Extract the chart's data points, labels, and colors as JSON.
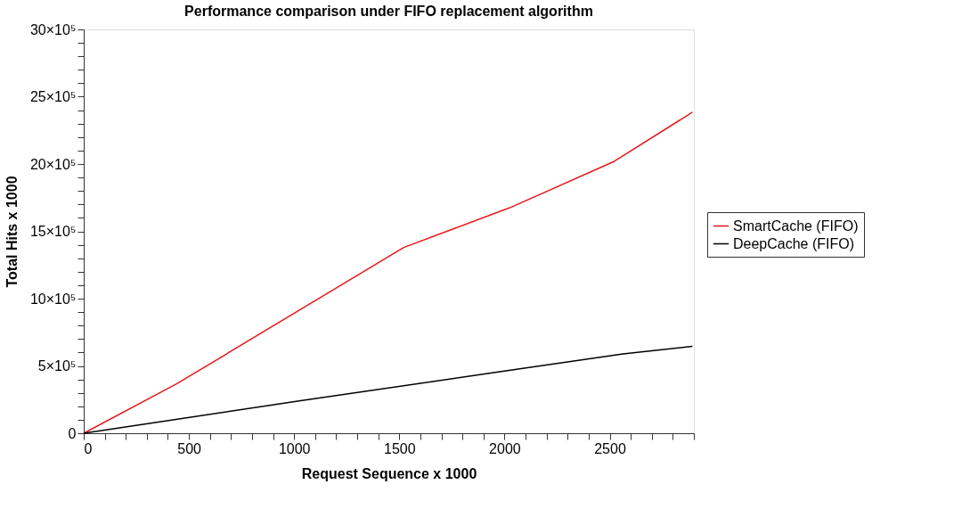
{
  "chart_data": {
    "type": "line",
    "title": "Performance comparison under FIFO replacement algorithm",
    "xlabel": "Request Sequence x 1000",
    "ylabel": "Total Hits x 1000",
    "xlim": [
      0,
      2900
    ],
    "ylim": [
      0,
      3000000
    ],
    "xticks": [
      0,
      {
        "value": 100,
        "label": null
      },
      {
        "value": 200,
        "label": null
      },
      {
        "value": 300,
        "label": null
      },
      {
        "value": 400,
        "label": null
      },
      500,
      {
        "value": 600,
        "label": null
      },
      {
        "value": 700,
        "label": null
      },
      {
        "value": 800,
        "label": null
      },
      {
        "value": 900,
        "label": null
      },
      1000,
      {
        "value": 1100,
        "label": null
      },
      {
        "value": 1200,
        "label": null
      },
      {
        "value": 1300,
        "label": null
      },
      {
        "value": 1400,
        "label": null
      },
      1500,
      {
        "value": 1600,
        "label": null
      },
      {
        "value": 1700,
        "label": null
      },
      {
        "value": 1800,
        "label": null
      },
      {
        "value": 1900,
        "label": null
      },
      2000,
      {
        "value": 2100,
        "label": null
      },
      {
        "value": 2200,
        "label": null
      },
      {
        "value": 2300,
        "label": null
      },
      {
        "value": 2400,
        "label": null
      },
      2500,
      {
        "value": 2600,
        "label": null
      },
      {
        "value": 2700,
        "label": null
      },
      {
        "value": 2800,
        "label": null
      },
      {
        "value": 2900,
        "label": null
      }
    ],
    "yticks": [
      0,
      {
        "value": 100000,
        "label": null
      },
      {
        "value": 200000,
        "label": null
      },
      {
        "value": 300000,
        "label": null
      },
      {
        "value": 400000,
        "label": null
      },
      {
        "value": 500000,
        "label": "5×10⁵"
      },
      {
        "value": 600000,
        "label": null
      },
      {
        "value": 700000,
        "label": null
      },
      {
        "value": 800000,
        "label": null
      },
      {
        "value": 900000,
        "label": null
      },
      {
        "value": 1000000,
        "label": "10×10⁵"
      },
      {
        "value": 1100000,
        "label": null
      },
      {
        "value": 1200000,
        "label": null
      },
      {
        "value": 1300000,
        "label": null
      },
      {
        "value": 1400000,
        "label": null
      },
      {
        "value": 1500000,
        "label": "15×10⁵"
      },
      {
        "value": 1600000,
        "label": null
      },
      {
        "value": 1700000,
        "label": null
      },
      {
        "value": 1800000,
        "label": null
      },
      {
        "value": 1900000,
        "label": null
      },
      {
        "value": 2000000,
        "label": "20×10⁵"
      },
      {
        "value": 2100000,
        "label": null
      },
      {
        "value": 2200000,
        "label": null
      },
      {
        "value": 2300000,
        "label": null
      },
      {
        "value": 2400000,
        "label": null
      },
      {
        "value": 2500000,
        "label": "25×10⁵"
      },
      {
        "value": 2600000,
        "label": null
      },
      {
        "value": 2700000,
        "label": null
      },
      {
        "value": 2800000,
        "label": null
      },
      {
        "value": 2900000,
        "label": null
      },
      {
        "value": 3000000,
        "label": "30×10⁵"
      }
    ],
    "grid": false,
    "legend": "right",
    "marker": "none",
    "line_style": "solid",
    "series": [
      {
        "name": "SmartCache (FIFO)",
        "color": "#e41a1c",
        "x": [
          0,
          443,
          1521,
          2025,
          2522,
          2893
        ],
        "values": [
          0,
          368000,
          1380000,
          1675000,
          2020000,
          2385000
        ]
      },
      {
        "name": "DeepCache (FIFO)",
        "color": "#000000",
        "x": [
          0,
          1031,
          1992,
          2564,
          2893
        ],
        "values": [
          0,
          242000,
          460000,
          590000,
          645000
        ]
      }
    ]
  }
}
